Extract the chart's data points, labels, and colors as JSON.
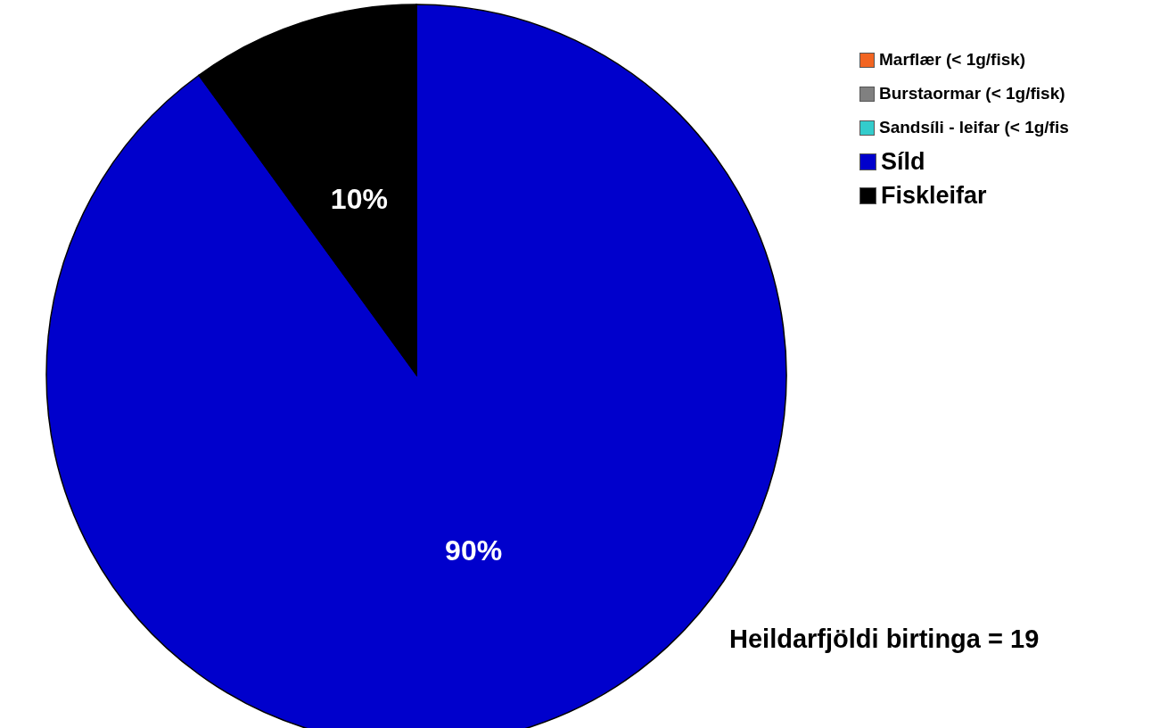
{
  "chart_data": {
    "type": "pie",
    "categories": [
      "Marflær (< 1g/fisk)",
      "Burstaormar (< 1g/fisk)",
      "Sandsíli - leifar (< 1g/fis",
      "Síld",
      "Fiskleifar"
    ],
    "values": [
      0,
      0,
      0,
      90,
      10
    ],
    "colors": [
      "#f26522",
      "#808080",
      "#33cccc",
      "#0000cc",
      "#000000"
    ],
    "value_labels": [
      null,
      null,
      null,
      "90%",
      "10%"
    ],
    "legend": "top right",
    "annotations": [
      "Heildarfjöldi birtinga = 19"
    ]
  }
}
